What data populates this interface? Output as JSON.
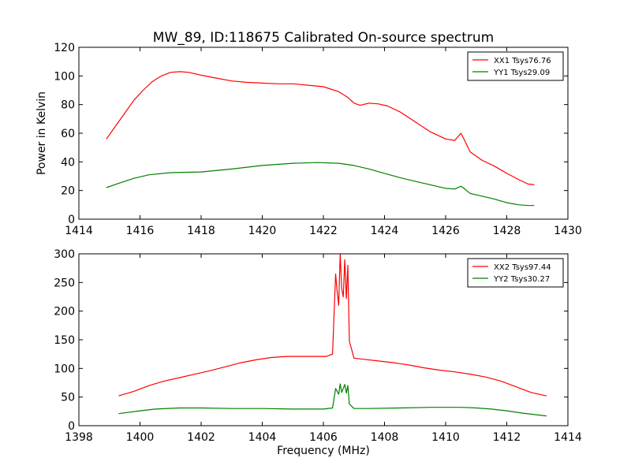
{
  "figure": {
    "title": "MW_89, ID:118675 Calibrated On-source spectrum",
    "ylabel": "Power in Kelvin",
    "xlabel": "Frequency (MHz)"
  },
  "chart_data": [
    {
      "type": "line",
      "xlim": [
        1414,
        1430
      ],
      "ylim": [
        0,
        120
      ],
      "x_ticks": [
        1414,
        1416,
        1418,
        1420,
        1422,
        1424,
        1426,
        1428,
        1430
      ],
      "y_ticks": [
        0,
        20,
        40,
        60,
        80,
        100,
        120
      ],
      "legend_position": "top-right",
      "series": [
        {
          "name": "XX1 Tsys76.76",
          "color": "#ff0000",
          "points": [
            [
              1414.9,
              56
            ],
            [
              1415.2,
              65
            ],
            [
              1415.5,
              74
            ],
            [
              1415.8,
              83
            ],
            [
              1416.1,
              90
            ],
            [
              1416.4,
              96
            ],
            [
              1416.7,
              100
            ],
            [
              1417.0,
              102.5
            ],
            [
              1417.3,
              103
            ],
            [
              1417.6,
              102.5
            ],
            [
              1418.0,
              100.5
            ],
            [
              1418.5,
              98.5
            ],
            [
              1419.0,
              96.5
            ],
            [
              1419.5,
              95.5
            ],
            [
              1420.0,
              95
            ],
            [
              1420.5,
              94.5
            ],
            [
              1421.0,
              94.5
            ],
            [
              1421.5,
              93.5
            ],
            [
              1422.0,
              92.5
            ],
            [
              1422.5,
              89
            ],
            [
              1422.8,
              85
            ],
            [
              1423.0,
              81
            ],
            [
              1423.2,
              79.5
            ],
            [
              1423.5,
              81
            ],
            [
              1423.8,
              80.5
            ],
            [
              1424.1,
              79
            ],
            [
              1424.5,
              75
            ],
            [
              1425.0,
              68
            ],
            [
              1425.5,
              61
            ],
            [
              1426.0,
              56
            ],
            [
              1426.3,
              55
            ],
            [
              1426.5,
              60
            ],
            [
              1426.6,
              56
            ],
            [
              1426.8,
              47
            ],
            [
              1427.2,
              41
            ],
            [
              1427.6,
              37
            ],
            [
              1428.0,
              32
            ],
            [
              1428.4,
              27.5
            ],
            [
              1428.7,
              24.5
            ],
            [
              1428.9,
              24
            ]
          ]
        },
        {
          "name": "YY1 Tsys29.09",
          "color": "#008000",
          "points": [
            [
              1414.9,
              22
            ],
            [
              1415.3,
              25
            ],
            [
              1415.8,
              28.5
            ],
            [
              1416.3,
              31
            ],
            [
              1417.0,
              32.5
            ],
            [
              1418.0,
              33
            ],
            [
              1419.0,
              35
            ],
            [
              1420.0,
              37.5
            ],
            [
              1421.0,
              39
            ],
            [
              1421.8,
              39.5
            ],
            [
              1422.5,
              39
            ],
            [
              1423.0,
              37.5
            ],
            [
              1423.5,
              35
            ],
            [
              1424.0,
              32
            ],
            [
              1424.5,
              29
            ],
            [
              1425.0,
              26.5
            ],
            [
              1425.5,
              24
            ],
            [
              1426.0,
              21.5
            ],
            [
              1426.3,
              21
            ],
            [
              1426.5,
              23
            ],
            [
              1426.6,
              21.5
            ],
            [
              1426.8,
              18
            ],
            [
              1427.2,
              16
            ],
            [
              1427.6,
              14
            ],
            [
              1428.0,
              11.5
            ],
            [
              1428.4,
              10
            ],
            [
              1428.7,
              9.5
            ],
            [
              1428.9,
              9.5
            ]
          ]
        }
      ]
    },
    {
      "type": "line",
      "xlim": [
        1398,
        1414
      ],
      "ylim": [
        0,
        300
      ],
      "x_ticks": [
        1398,
        1400,
        1402,
        1404,
        1406,
        1408,
        1410,
        1412,
        1414
      ],
      "y_ticks": [
        0,
        50,
        100,
        150,
        200,
        250,
        300
      ],
      "legend_position": "top-right",
      "series": [
        {
          "name": "XX2 Tsys97.44",
          "color": "#ff0000",
          "points": [
            [
              1399.3,
              52
            ],
            [
              1399.8,
              60
            ],
            [
              1400.3,
              70
            ],
            [
              1400.8,
              78
            ],
            [
              1401.3,
              84
            ],
            [
              1401.8,
              90
            ],
            [
              1402.3,
              96
            ],
            [
              1402.8,
              103
            ],
            [
              1403.3,
              110
            ],
            [
              1403.8,
              115
            ],
            [
              1404.3,
              119
            ],
            [
              1404.8,
              121
            ],
            [
              1405.3,
              121
            ],
            [
              1405.8,
              121
            ],
            [
              1406.1,
              121
            ],
            [
              1406.3,
              125
            ],
            [
              1406.4,
              265
            ],
            [
              1406.45,
              235
            ],
            [
              1406.5,
              210
            ],
            [
              1406.55,
              300
            ],
            [
              1406.6,
              240
            ],
            [
              1406.65,
              225
            ],
            [
              1406.7,
              290
            ],
            [
              1406.75,
              222
            ],
            [
              1406.8,
              280
            ],
            [
              1406.85,
              148
            ],
            [
              1407.0,
              118
            ],
            [
              1407.3,
              116
            ],
            [
              1407.8,
              113
            ],
            [
              1408.3,
              110
            ],
            [
              1408.8,
              106
            ],
            [
              1409.3,
              101
            ],
            [
              1409.8,
              97
            ],
            [
              1410.3,
              94
            ],
            [
              1410.8,
              90
            ],
            [
              1411.3,
              85
            ],
            [
              1411.8,
              78
            ],
            [
              1412.3,
              68
            ],
            [
              1412.8,
              58
            ],
            [
              1413.3,
              52
            ]
          ]
        },
        {
          "name": "YY2 Tsys30.27",
          "color": "#008000",
          "points": [
            [
              1399.3,
              21
            ],
            [
              1400.0,
              26
            ],
            [
              1400.5,
              29
            ],
            [
              1401.3,
              31
            ],
            [
              1402.0,
              31
            ],
            [
              1403.0,
              30
            ],
            [
              1404.0,
              30
            ],
            [
              1405.0,
              29
            ],
            [
              1406.0,
              29
            ],
            [
              1406.3,
              31
            ],
            [
              1406.4,
              65
            ],
            [
              1406.5,
              55
            ],
            [
              1406.55,
              73
            ],
            [
              1406.6,
              58
            ],
            [
              1406.7,
              72
            ],
            [
              1406.75,
              57
            ],
            [
              1406.8,
              70
            ],
            [
              1406.85,
              38
            ],
            [
              1407.0,
              30
            ],
            [
              1407.5,
              30
            ],
            [
              1408.5,
              31
            ],
            [
              1409.5,
              32
            ],
            [
              1410.5,
              32
            ],
            [
              1411.0,
              31
            ],
            [
              1411.5,
              29
            ],
            [
              1412.0,
              26
            ],
            [
              1412.5,
              22
            ],
            [
              1413.3,
              17
            ]
          ]
        }
      ]
    }
  ]
}
